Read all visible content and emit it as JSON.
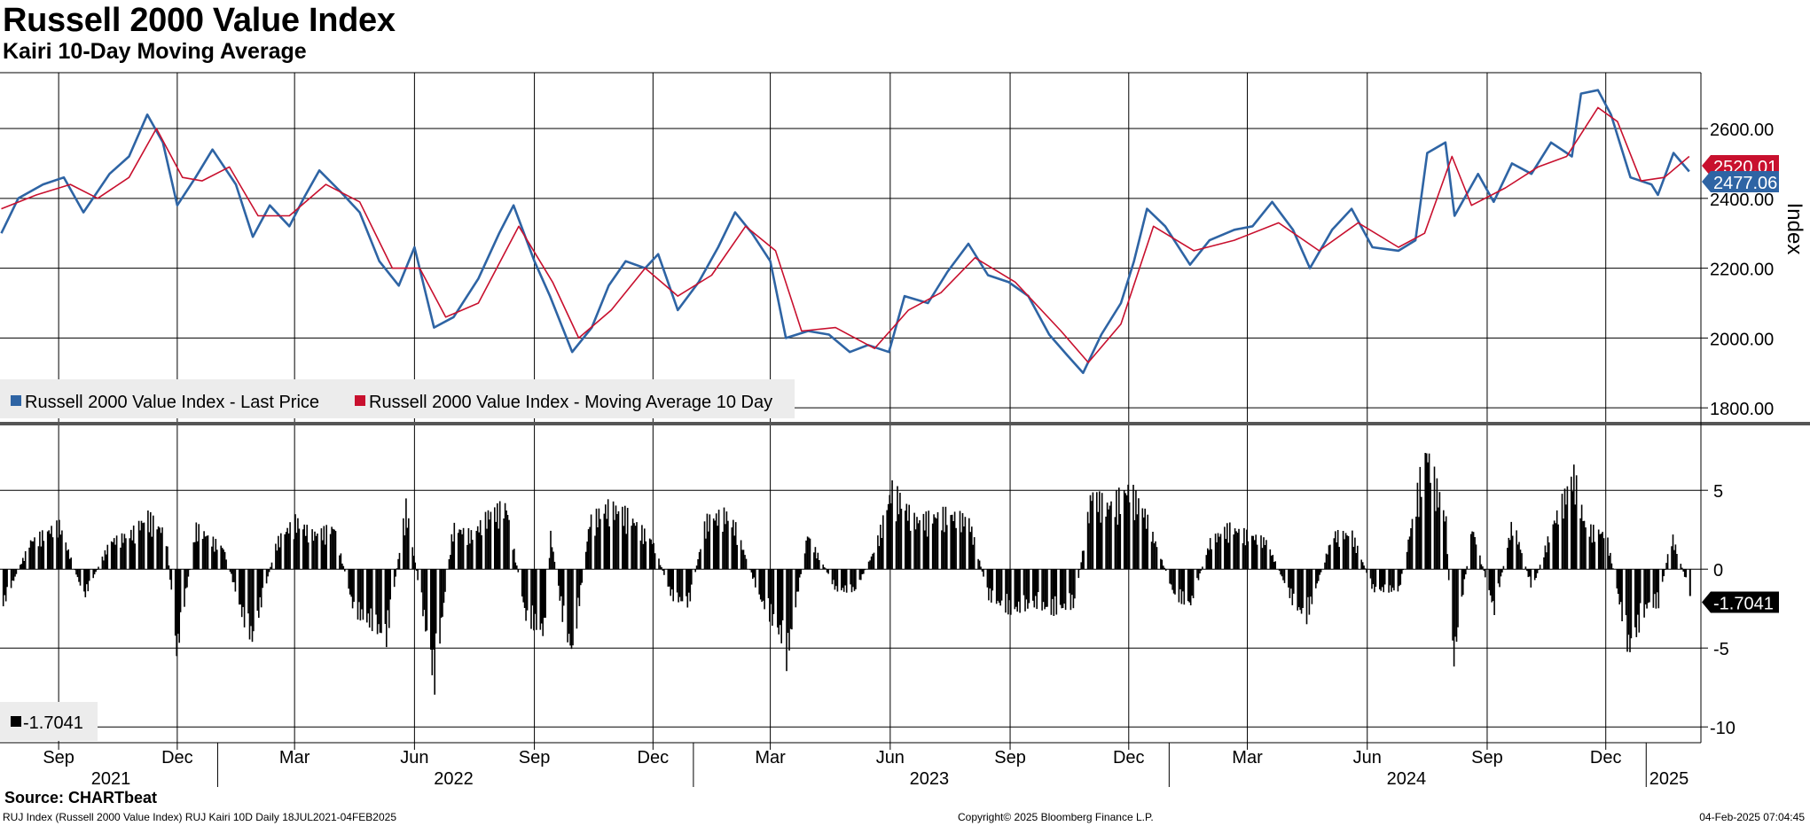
{
  "header": {
    "title": "Russell 2000 Value Index",
    "subtitle": "Kairi 10-Day Moving Average"
  },
  "footer": {
    "source": "Source: CHARTbeat",
    "left": "RUJ Index (Russell 2000 Value Index) RUJ Kairi 10D  Daily 18JUL2021-04FEB2025",
    "center": "Copyright© 2025 Bloomberg Finance L.P.",
    "right": "04-Feb-2025 07:04:45"
  },
  "colors": {
    "price": "#2e64a4",
    "moving_average": "#c8102e",
    "kairi": "#000000",
    "grid": "#000000"
  },
  "chart_data": [
    {
      "type": "line",
      "ylabel": "Index",
      "ylim": [
        1770,
        2760
      ],
      "yticks": [
        "1800.00",
        "2000.00",
        "2200.00",
        "2400.00",
        "2600.00"
      ],
      "grid": true,
      "legend_placement": "bottom-left",
      "series": [
        {
          "name": "Russell 2000 Value Index - Last Price",
          "last_value_label": "2477.06",
          "points": [
            [
              "2021-07-19",
              2300
            ],
            [
              "2021-08-01",
              2400
            ],
            [
              "2021-08-20",
              2440
            ],
            [
              "2021-09-05",
              2460
            ],
            [
              "2021-09-20",
              2360
            ],
            [
              "2021-10-10",
              2470
            ],
            [
              "2021-10-25",
              2520
            ],
            [
              "2021-11-08",
              2640
            ],
            [
              "2021-11-20",
              2560
            ],
            [
              "2021-12-01",
              2380
            ],
            [
              "2021-12-15",
              2460
            ],
            [
              "2021-12-28",
              2540
            ],
            [
              "2022-01-15",
              2440
            ],
            [
              "2022-01-28",
              2290
            ],
            [
              "2022-02-10",
              2380
            ],
            [
              "2022-02-25",
              2320
            ],
            [
              "2022-03-08",
              2400
            ],
            [
              "2022-03-20",
              2480
            ],
            [
              "2022-04-05",
              2420
            ],
            [
              "2022-04-20",
              2360
            ],
            [
              "2022-05-05",
              2220
            ],
            [
              "2022-05-20",
              2150
            ],
            [
              "2022-06-01",
              2260
            ],
            [
              "2022-06-16",
              2030
            ],
            [
              "2022-07-01",
              2060
            ],
            [
              "2022-07-20",
              2170
            ],
            [
              "2022-08-05",
              2300
            ],
            [
              "2022-08-16",
              2380
            ],
            [
              "2022-09-01",
              2220
            ],
            [
              "2022-09-13",
              2120
            ],
            [
              "2022-09-30",
              1960
            ],
            [
              "2022-10-15",
              2030
            ],
            [
              "2022-10-28",
              2150
            ],
            [
              "2022-11-10",
              2220
            ],
            [
              "2022-11-25",
              2200
            ],
            [
              "2022-12-05",
              2240
            ],
            [
              "2022-12-20",
              2080
            ],
            [
              "2023-01-05",
              2160
            ],
            [
              "2023-01-20",
              2260
            ],
            [
              "2023-02-02",
              2360
            ],
            [
              "2023-02-15",
              2300
            ],
            [
              "2023-03-01",
              2220
            ],
            [
              "2023-03-13",
              2000
            ],
            [
              "2023-03-30",
              2020
            ],
            [
              "2023-04-15",
              2010
            ],
            [
              "2023-05-01",
              1960
            ],
            [
              "2023-05-15",
              1980
            ],
            [
              "2023-05-31",
              1960
            ],
            [
              "2023-06-12",
              2120
            ],
            [
              "2023-06-30",
              2100
            ],
            [
              "2023-07-15",
              2190
            ],
            [
              "2023-07-31",
              2270
            ],
            [
              "2023-08-15",
              2180
            ],
            [
              "2023-08-31",
              2160
            ],
            [
              "2023-09-15",
              2120
            ],
            [
              "2023-10-01",
              2010
            ],
            [
              "2023-10-15",
              1950
            ],
            [
              "2023-10-27",
              1900
            ],
            [
              "2023-11-10",
              2010
            ],
            [
              "2023-11-25",
              2100
            ],
            [
              "2023-12-05",
              2220
            ],
            [
              "2023-12-15",
              2370
            ],
            [
              "2023-12-29",
              2320
            ],
            [
              "2024-01-17",
              2210
            ],
            [
              "2024-02-01",
              2280
            ],
            [
              "2024-02-20",
              2310
            ],
            [
              "2024-03-05",
              2320
            ],
            [
              "2024-03-20",
              2390
            ],
            [
              "2024-04-05",
              2310
            ],
            [
              "2024-04-18",
              2200
            ],
            [
              "2024-05-05",
              2310
            ],
            [
              "2024-05-20",
              2370
            ],
            [
              "2024-06-05",
              2260
            ],
            [
              "2024-06-25",
              2250
            ],
            [
              "2024-07-08",
              2280
            ],
            [
              "2024-07-17",
              2530
            ],
            [
              "2024-07-31",
              2560
            ],
            [
              "2024-08-07",
              2350
            ],
            [
              "2024-08-25",
              2470
            ],
            [
              "2024-09-06",
              2390
            ],
            [
              "2024-09-20",
              2500
            ],
            [
              "2024-10-05",
              2470
            ],
            [
              "2024-10-20",
              2560
            ],
            [
              "2024-11-05",
              2520
            ],
            [
              "2024-11-12",
              2700
            ],
            [
              "2024-11-25",
              2710
            ],
            [
              "2024-12-05",
              2640
            ],
            [
              "2024-12-20",
              2460
            ],
            [
              "2025-01-05",
              2440
            ],
            [
              "2025-01-10",
              2410
            ],
            [
              "2025-01-22",
              2530
            ],
            [
              "2025-02-03",
              2477
            ]
          ]
        },
        {
          "name": "Russell 2000 Value Index - Moving Average 10 Day",
          "last_value_label": "2520.01",
          "points": [
            [
              "2021-07-19",
              2370
            ],
            [
              "2021-08-15",
              2410
            ],
            [
              "2021-09-10",
              2440
            ],
            [
              "2021-10-01",
              2400
            ],
            [
              "2021-10-25",
              2460
            ],
            [
              "2021-11-15",
              2600
            ],
            [
              "2021-12-05",
              2460
            ],
            [
              "2021-12-20",
              2450
            ],
            [
              "2022-01-10",
              2490
            ],
            [
              "2022-02-01",
              2350
            ],
            [
              "2022-02-25",
              2350
            ],
            [
              "2022-03-25",
              2440
            ],
            [
              "2022-04-20",
              2390
            ],
            [
              "2022-05-15",
              2200
            ],
            [
              "2022-06-05",
              2200
            ],
            [
              "2022-06-25",
              2060
            ],
            [
              "2022-07-20",
              2100
            ],
            [
              "2022-08-20",
              2320
            ],
            [
              "2022-09-15",
              2160
            ],
            [
              "2022-10-05",
              2000
            ],
            [
              "2022-10-30",
              2080
            ],
            [
              "2022-11-25",
              2200
            ],
            [
              "2022-12-20",
              2120
            ],
            [
              "2023-01-15",
              2180
            ],
            [
              "2023-02-10",
              2320
            ],
            [
              "2023-03-05",
              2250
            ],
            [
              "2023-03-25",
              2020
            ],
            [
              "2023-04-20",
              2030
            ],
            [
              "2023-05-20",
              1970
            ],
            [
              "2023-06-15",
              2080
            ],
            [
              "2023-07-10",
              2130
            ],
            [
              "2023-08-05",
              2230
            ],
            [
              "2023-09-05",
              2160
            ],
            [
              "2023-10-10",
              2020
            ],
            [
              "2023-10-31",
              1930
            ],
            [
              "2023-11-25",
              2040
            ],
            [
              "2023-12-20",
              2320
            ],
            [
              "2024-01-20",
              2250
            ],
            [
              "2024-02-20",
              2280
            ],
            [
              "2024-03-25",
              2330
            ],
            [
              "2024-04-25",
              2250
            ],
            [
              "2024-05-25",
              2330
            ],
            [
              "2024-06-25",
              2260
            ],
            [
              "2024-07-15",
              2300
            ],
            [
              "2024-08-05",
              2520
            ],
            [
              "2024-08-20",
              2380
            ],
            [
              "2024-09-15",
              2430
            ],
            [
              "2024-10-10",
              2490
            ],
            [
              "2024-11-01",
              2520
            ],
            [
              "2024-11-25",
              2660
            ],
            [
              "2024-12-10",
              2620
            ],
            [
              "2024-12-28",
              2450
            ],
            [
              "2025-01-15",
              2460
            ],
            [
              "2025-02-03",
              2520
            ]
          ]
        }
      ]
    },
    {
      "type": "bar",
      "ylim": [
        -11,
        9
      ],
      "yticks": [
        "-10",
        "-5",
        "0",
        "5"
      ],
      "grid": true,
      "legend_placement": "bottom-left",
      "series": [
        {
          "name": "-1.7041",
          "last_value_label": "-1.7041"
        }
      ],
      "points": [
        [
          "2021-07-20",
          -2.5
        ],
        [
          "2021-08-10",
          2.0
        ],
        [
          "2021-09-01",
          3.2
        ],
        [
          "2021-09-20",
          -2.0
        ],
        [
          "2021-10-10",
          2.0
        ],
        [
          "2021-10-25",
          2.5
        ],
        [
          "2021-11-08",
          3.8
        ],
        [
          "2021-11-22",
          2.5
        ],
        [
          "2021-11-30",
          -6.0
        ],
        [
          "2021-12-15",
          3.0
        ],
        [
          "2022-01-05",
          1.5
        ],
        [
          "2022-01-20",
          -3.5
        ],
        [
          "2022-01-27",
          -5.0
        ],
        [
          "2022-02-15",
          2.0
        ],
        [
          "2022-03-01",
          3.5
        ],
        [
          "2022-03-15",
          2.5
        ],
        [
          "2022-03-31",
          3.0
        ],
        [
          "2022-04-15",
          -3.0
        ],
        [
          "2022-04-30",
          -4.0
        ],
        [
          "2022-05-10",
          -5.0
        ],
        [
          "2022-05-25",
          4.5
        ],
        [
          "2022-06-13",
          -6.5
        ],
        [
          "2022-06-16",
          -8.0
        ],
        [
          "2022-06-30",
          3.0
        ],
        [
          "2022-07-15",
          2.5
        ],
        [
          "2022-07-28",
          4.0
        ],
        [
          "2022-08-10",
          4.5
        ],
        [
          "2022-08-25",
          -3.5
        ],
        [
          "2022-09-08",
          -4.5
        ],
        [
          "2022-09-13",
          2.5
        ],
        [
          "2022-09-23",
          -4.0
        ],
        [
          "2022-09-30",
          -6.0
        ],
        [
          "2022-10-13",
          3.5
        ],
        [
          "2022-10-27",
          4.5
        ],
        [
          "2022-11-10",
          4.0
        ],
        [
          "2022-11-30",
          2.0
        ],
        [
          "2022-12-15",
          -2.0
        ],
        [
          "2022-12-28",
          -2.5
        ],
        [
          "2023-01-10",
          3.5
        ],
        [
          "2023-01-25",
          4.0
        ],
        [
          "2023-02-02",
          3.0
        ],
        [
          "2023-02-20",
          -2.0
        ],
        [
          "2023-03-10",
          -5.0
        ],
        [
          "2023-03-13",
          -6.5
        ],
        [
          "2023-03-29",
          2.5
        ],
        [
          "2023-04-20",
          -1.5
        ],
        [
          "2023-05-05",
          -1.5
        ],
        [
          "2023-05-20",
          1.5
        ],
        [
          "2023-06-02",
          5.8
        ],
        [
          "2023-06-20",
          3.5
        ],
        [
          "2023-07-13",
          4.0
        ],
        [
          "2023-07-31",
          3.5
        ],
        [
          "2023-08-15",
          -2.0
        ],
        [
          "2023-09-01",
          -3.0
        ],
        [
          "2023-09-20",
          -2.5
        ],
        [
          "2023-10-03",
          -3.0
        ],
        [
          "2023-10-20",
          -2.5
        ],
        [
          "2023-11-02",
          5.5
        ],
        [
          "2023-11-14",
          4.5
        ],
        [
          "2023-12-01",
          5.8
        ],
        [
          "2023-12-13",
          4.0
        ],
        [
          "2024-01-05",
          -2.0
        ],
        [
          "2024-01-17",
          -2.5
        ],
        [
          "2024-02-01",
          2.0
        ],
        [
          "2024-02-15",
          3.0
        ],
        [
          "2024-03-01",
          2.5
        ],
        [
          "2024-03-15",
          2.0
        ],
        [
          "2024-04-05",
          -2.5
        ],
        [
          "2024-04-15",
          -3.5
        ],
        [
          "2024-05-05",
          2.5
        ],
        [
          "2024-05-20",
          2.5
        ],
        [
          "2024-06-05",
          -1.5
        ],
        [
          "2024-06-25",
          -1.5
        ],
        [
          "2024-07-11",
          6.5
        ],
        [
          "2024-07-16",
          8.5
        ],
        [
          "2024-07-31",
          3.5
        ],
        [
          "2024-08-05",
          -7.0
        ],
        [
          "2024-08-20",
          3.0
        ],
        [
          "2024-09-06",
          -3.0
        ],
        [
          "2024-09-20",
          3.5
        ],
        [
          "2024-10-05",
          -1.5
        ],
        [
          "2024-10-20",
          3.0
        ],
        [
          "2024-11-06",
          6.8
        ],
        [
          "2024-11-15",
          3.0
        ],
        [
          "2024-12-01",
          2.5
        ],
        [
          "2024-12-18",
          -5.8
        ],
        [
          "2025-01-02",
          -2.5
        ],
        [
          "2025-01-10",
          -2.5
        ],
        [
          "2025-01-20",
          2.5
        ],
        [
          "2025-02-03",
          -1.7
        ]
      ]
    }
  ],
  "x_axis": {
    "months": [
      [
        "2021-09-01",
        "Sep"
      ],
      [
        "2021-12-01",
        "Dec"
      ],
      [
        "2022-03-01",
        "Mar"
      ],
      [
        "2022-06-01",
        "Jun"
      ],
      [
        "2022-09-01",
        "Sep"
      ],
      [
        "2022-12-01",
        "Dec"
      ],
      [
        "2023-03-01",
        "Mar"
      ],
      [
        "2023-06-01",
        "Jun"
      ],
      [
        "2023-09-01",
        "Sep"
      ],
      [
        "2023-12-01",
        "Dec"
      ],
      [
        "2024-03-01",
        "Mar"
      ],
      [
        "2024-06-01",
        "Jun"
      ],
      [
        "2024-09-01",
        "Sep"
      ],
      [
        "2024-12-01",
        "Dec"
      ]
    ],
    "years": [
      [
        "2022-07-01",
        "2022"
      ],
      [
        "2023-07-01",
        "2023"
      ],
      [
        "2024-07-01",
        "2024"
      ]
    ],
    "first_year": "2021",
    "last_year": "2025"
  }
}
